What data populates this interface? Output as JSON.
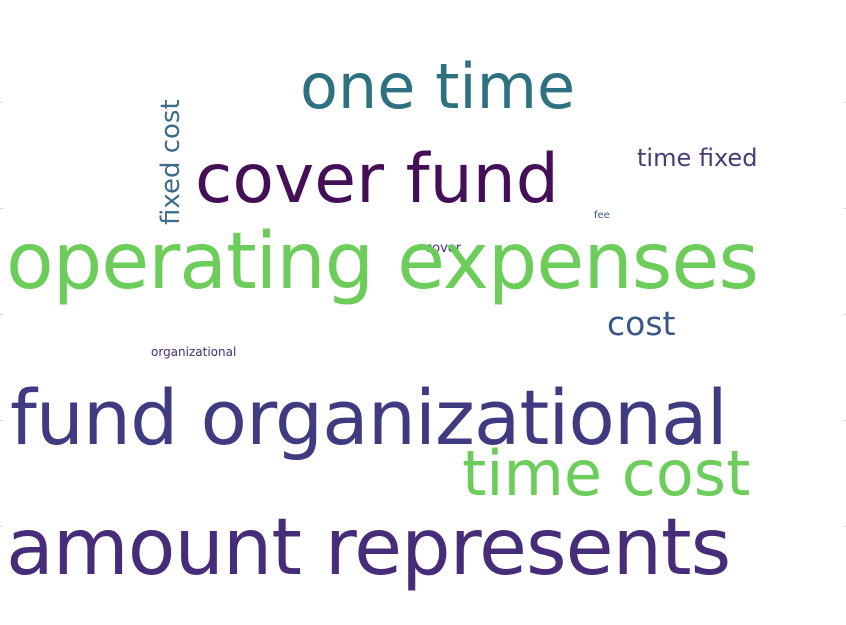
{
  "colors": {
    "background": "#ffffff",
    "deep_purple": "#440f57",
    "indigo": "#3f3b80",
    "purple": "#472c7a",
    "blue": "#38588c",
    "teal": "#2e7180",
    "green": "#6ccd5a",
    "grey_purple": "#4a3a73"
  },
  "words": [
    {
      "text": "one time",
      "color": "#2e7180"
    },
    {
      "text": "fixed cost",
      "color": "#3b6c8a"
    },
    {
      "text": "time fixed",
      "color": "#4a3a73"
    },
    {
      "text": "cover fund",
      "color": "#440f57"
    },
    {
      "text": "fee",
      "color": "#38588c"
    },
    {
      "text": "cover",
      "color": "#472c7a"
    },
    {
      "text": "operating expenses",
      "color": "#6ccd5a"
    },
    {
      "text": "cost",
      "color": "#38588c"
    },
    {
      "text": "organizational",
      "color": "#472c7a"
    },
    {
      "text": "fund organizational",
      "color": "#3f3b80"
    },
    {
      "text": "time cost",
      "color": "#6ccd5a"
    },
    {
      "text": "amount represents",
      "color": "#472c7a"
    }
  ]
}
